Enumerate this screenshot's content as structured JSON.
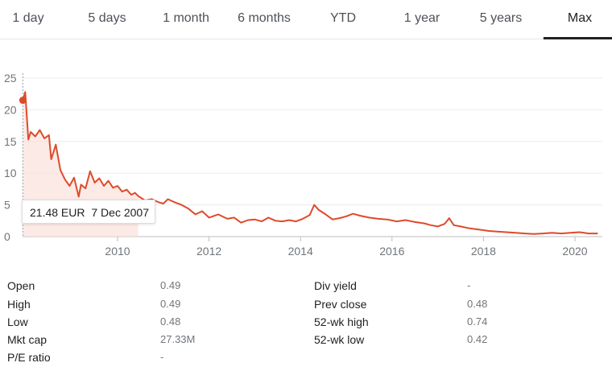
{
  "tabs": [
    {
      "label": "1 day"
    },
    {
      "label": "5 days"
    },
    {
      "label": "1 month"
    },
    {
      "label": "6 months"
    },
    {
      "label": "YTD"
    },
    {
      "label": "1 year"
    },
    {
      "label": "5 years"
    },
    {
      "label": "Max"
    }
  ],
  "tooltip": {
    "price": "21.48 EUR",
    "date": "7 Dec 2007"
  },
  "chart_data": {
    "type": "line",
    "line_color": "#dd4b2a",
    "fill_color": "#fbe1dc",
    "ylim": [
      0,
      25
    ],
    "yticks": [
      "0",
      "5",
      "10",
      "15",
      "20",
      "25"
    ],
    "xticks": [
      "2010",
      "2012",
      "2014",
      "2016",
      "2018",
      "2020"
    ],
    "xlim": [
      2007.93,
      2020.6
    ],
    "series": [
      {
        "x": [
          2007.93,
          2007.98,
          2008.05,
          2008.1,
          2008.2,
          2008.3,
          2008.4,
          2008.5,
          2008.55,
          2008.65,
          2008.75,
          2008.85,
          2008.95,
          2009.05,
          2009.15,
          2009.2,
          2009.3,
          2009.4,
          2009.5,
          2009.6,
          2009.7,
          2009.8,
          2009.9,
          2010.0,
          2010.1,
          2010.2,
          2010.3,
          2010.38,
          2010.45,
          2010.6,
          2010.75,
          2010.9,
          2011.0,
          2011.1,
          2011.25,
          2011.4,
          2011.55,
          2011.7,
          2011.85,
          2012.0,
          2012.2,
          2012.4,
          2012.55,
          2012.7,
          2012.85,
          2013.0,
          2013.15,
          2013.3,
          2013.45,
          2013.6,
          2013.75,
          2013.9,
          2014.05,
          2014.2,
          2014.3,
          2014.4,
          2014.55,
          2014.7,
          2014.85,
          2015.0,
          2015.15,
          2015.3,
          2015.5,
          2015.7,
          2015.9,
          2016.1,
          2016.3,
          2016.5,
          2016.7,
          2016.85,
          2017.0,
          2017.15,
          2017.25,
          2017.35,
          2017.5,
          2017.7,
          2017.9,
          2018.1,
          2018.3,
          2018.5,
          2018.7,
          2018.9,
          2019.1,
          2019.3,
          2019.5,
          2019.7,
          2019.9,
          2020.1,
          2020.3,
          2020.5
        ],
        "y": [
          21.5,
          22.8,
          15.3,
          16.5,
          15.8,
          16.8,
          15.5,
          16.0,
          12.2,
          14.5,
          10.5,
          9.0,
          8.0,
          9.3,
          6.3,
          8.2,
          7.6,
          10.3,
          8.5,
          9.2,
          8.0,
          8.8,
          7.7,
          8.0,
          7.1,
          7.4,
          6.6,
          6.9,
          6.4,
          5.7,
          5.9,
          5.4,
          5.2,
          5.9,
          5.4,
          5.0,
          4.4,
          3.5,
          4.0,
          3.0,
          3.5,
          2.8,
          3.0,
          2.2,
          2.6,
          2.7,
          2.4,
          3.0,
          2.5,
          2.4,
          2.6,
          2.4,
          2.8,
          3.4,
          5.0,
          4.2,
          3.5,
          2.7,
          2.9,
          3.2,
          3.6,
          3.3,
          3.0,
          2.8,
          2.7,
          2.4,
          2.6,
          2.3,
          2.1,
          1.8,
          1.6,
          2.0,
          2.9,
          1.8,
          1.6,
          1.3,
          1.1,
          0.9,
          0.8,
          0.7,
          0.6,
          0.5,
          0.4,
          0.5,
          0.6,
          0.5,
          0.6,
          0.7,
          0.5,
          0.5
        ]
      }
    ]
  },
  "stats": {
    "open_label": "Open",
    "open_value": "0.49",
    "high_label": "High",
    "high_value": "0.49",
    "low_label": "Low",
    "low_value": "0.48",
    "mktcap_label": "Mkt cap",
    "mktcap_value": "27.33M",
    "pe_label": "P/E ratio",
    "pe_value": "-",
    "divyield_label": "Div yield",
    "divyield_value": "-",
    "prevclose_label": "Prev close",
    "prevclose_value": "0.48",
    "wkhigh_label": "52-wk high",
    "wkhigh_value": "0.74",
    "wklow_label": "52-wk low",
    "wklow_value": "0.42"
  }
}
